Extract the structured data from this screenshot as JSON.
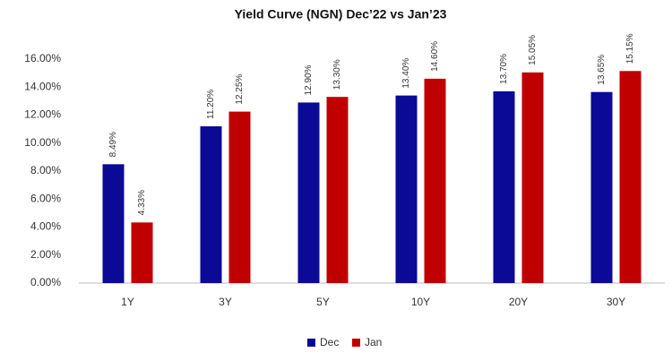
{
  "chart_data": {
    "type": "bar",
    "title": "Yield Curve (NGN) Dec’22 vs Jan’23",
    "categories": [
      "1Y",
      "3Y",
      "5Y",
      "10Y",
      "20Y",
      "30Y"
    ],
    "series": [
      {
        "name": "Dec",
        "color": "#0a0a96",
        "values": [
          8.49,
          11.2,
          12.9,
          13.4,
          13.7,
          13.65
        ],
        "value_labels": [
          "8.49%",
          "11.20%",
          "12.90%",
          "13.40%",
          "13.70%",
          "13.65%"
        ]
      },
      {
        "name": "Jan",
        "color": "#c00000",
        "values": [
          4.33,
          12.25,
          13.3,
          14.6,
          15.05,
          15.15
        ],
        "value_labels": [
          "4.33%",
          "12.25%",
          "13.30%",
          "14.60%",
          "15.05%",
          "15.15%"
        ]
      }
    ],
    "ylim": [
      0,
      16
    ],
    "yticks": [
      {
        "value": 0,
        "label": "0.00%"
      },
      {
        "value": 2,
        "label": "2.00%"
      },
      {
        "value": 4,
        "label": "4.00%"
      },
      {
        "value": 6,
        "label": "6.00%"
      },
      {
        "value": 8,
        "label": "8.00%"
      },
      {
        "value": 10,
        "label": "10.00%"
      },
      {
        "value": 12,
        "label": "12.00%"
      },
      {
        "value": 14,
        "label": "14.00%"
      },
      {
        "value": 16,
        "label": "16.00%"
      }
    ],
    "legend": "bottom"
  }
}
